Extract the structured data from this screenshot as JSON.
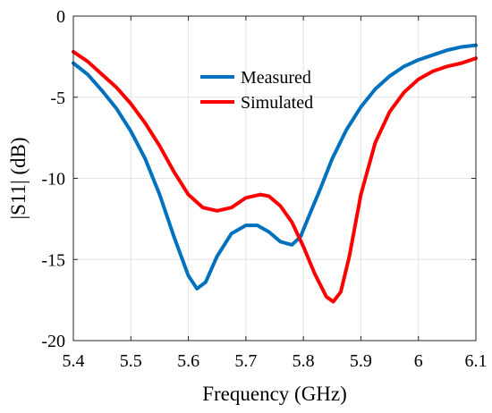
{
  "chart_data": {
    "type": "line",
    "title": "",
    "xlabel": "Frequency (GHz)",
    "ylabel": "|S11| (dB)",
    "xlim": [
      5.4,
      6.1
    ],
    "ylim": [
      -20,
      0
    ],
    "xticks": [
      5.4,
      5.5,
      5.6,
      5.7,
      5.8,
      5.9,
      6.0,
      6.1
    ],
    "xtick_labels": [
      "5.4",
      "5.5",
      "5.6",
      "5.7",
      "5.8",
      "5.9",
      "6",
      "6.1"
    ],
    "yticks": [
      0,
      -5,
      -10,
      -15,
      -20
    ],
    "ytick_labels": [
      "0",
      "-5",
      "-10",
      "-15",
      "-20"
    ],
    "grid": true,
    "legend_position": "top-center",
    "series": [
      {
        "name": "Measured",
        "color": "#0072bd",
        "x": [
          5.4,
          5.425,
          5.45,
          5.475,
          5.5,
          5.525,
          5.55,
          5.575,
          5.6,
          5.615,
          5.63,
          5.65,
          5.675,
          5.7,
          5.72,
          5.74,
          5.76,
          5.78,
          5.795,
          5.81,
          5.83,
          5.85,
          5.875,
          5.9,
          5.925,
          5.95,
          5.975,
          6.0,
          6.025,
          6.05,
          6.075,
          6.1
        ],
        "y": [
          -2.9,
          -3.6,
          -4.6,
          -5.7,
          -7.1,
          -8.8,
          -11.0,
          -13.6,
          -16.0,
          -16.8,
          -16.4,
          -14.8,
          -13.4,
          -12.9,
          -12.9,
          -13.3,
          -13.9,
          -14.1,
          -13.6,
          -12.3,
          -10.6,
          -8.8,
          -7.0,
          -5.6,
          -4.5,
          -3.7,
          -3.1,
          -2.7,
          -2.4,
          -2.1,
          -1.9,
          -1.8
        ]
      },
      {
        "name": "Simulated",
        "color": "#ff0000",
        "x": [
          5.4,
          5.425,
          5.45,
          5.475,
          5.5,
          5.525,
          5.55,
          5.575,
          5.6,
          5.625,
          5.65,
          5.675,
          5.7,
          5.725,
          5.74,
          5.76,
          5.78,
          5.8,
          5.82,
          5.84,
          5.852,
          5.865,
          5.88,
          5.9,
          5.925,
          5.95,
          5.975,
          6.0,
          6.025,
          6.05,
          6.075,
          6.1
        ],
        "y": [
          -2.2,
          -2.8,
          -3.6,
          -4.4,
          -5.4,
          -6.6,
          -8.0,
          -9.6,
          -11.0,
          -11.8,
          -12.0,
          -11.8,
          -11.2,
          -11.0,
          -11.1,
          -11.7,
          -12.7,
          -14.2,
          -15.9,
          -17.3,
          -17.6,
          -17.0,
          -14.8,
          -11.0,
          -7.8,
          -5.9,
          -4.7,
          -3.9,
          -3.4,
          -3.1,
          -2.9,
          -2.6
        ]
      }
    ]
  }
}
